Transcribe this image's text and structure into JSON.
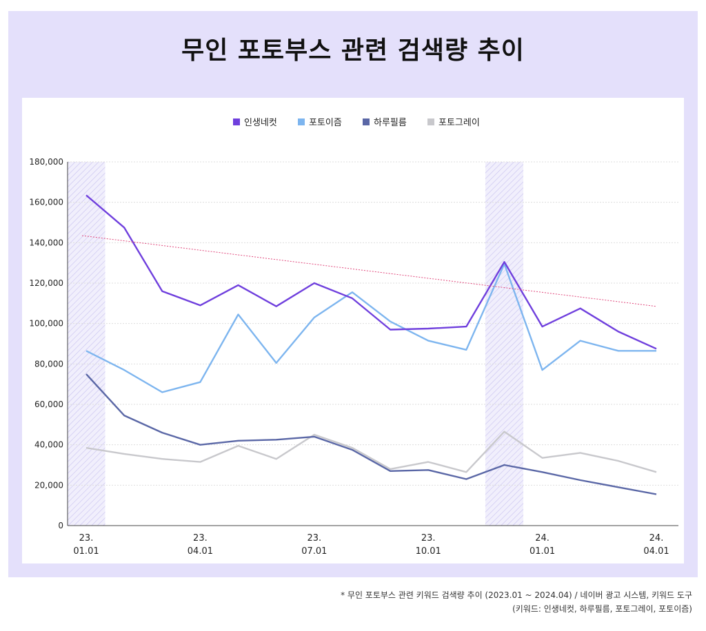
{
  "title": "무인 포토부스 관련 검색량 추이",
  "footnote": {
    "line1": "* 무인 포토부스 관련 키워드 검색량 추이 (2023.01 ~ 2024.04) / 네이버 광고 시스템, 키워드 도구",
    "line2": "(키워드: 인생네컷, 하루필름, 포토그레이, 포토이즘)"
  },
  "colors": {
    "panel_bg": "#e4e0fb",
    "trendline": "#e0457a",
    "highlight_hatch": "#c7c1ef",
    "grid": "#dddddd"
  },
  "chart_data": {
    "type": "line",
    "title": "무인 포토부스 관련 검색량 추이",
    "months": [
      "2023.01",
      "2023.02",
      "2023.03",
      "2023.04",
      "2023.05",
      "2023.06",
      "2023.07",
      "2023.08",
      "2023.09",
      "2023.10",
      "2023.11",
      "2023.12",
      "2024.01",
      "2024.02",
      "2024.03",
      "2024.04"
    ],
    "x_tick_labels": [
      {
        "index": 0,
        "line1": "23.",
        "line2": "01.01"
      },
      {
        "index": 3,
        "line1": "23.",
        "line2": "04.01"
      },
      {
        "index": 6,
        "line1": "23.",
        "line2": "07.01"
      },
      {
        "index": 9,
        "line1": "23.",
        "line2": "10.01"
      },
      {
        "index": 12,
        "line1": "24.",
        "line2": "01.01"
      },
      {
        "index": 15,
        "line1": "24.",
        "line2": "04.01"
      }
    ],
    "y_ticks": [
      "0",
      "20,000",
      "40,000",
      "60,000",
      "80,000",
      "100,000",
      "120,000",
      "140,000",
      "160,000",
      "180,000"
    ],
    "ylim": [
      0,
      180000
    ],
    "xlabel": "",
    "ylabel": "",
    "grid": true,
    "legend_position": "top-center",
    "highlight_month_ranges": [
      [
        0,
        0
      ],
      [
        11,
        11
      ]
    ],
    "trendline": {
      "series": "인생네컷",
      "start": 143500,
      "end": 108500,
      "style": "dotted"
    },
    "series": [
      {
        "name": "인생네컷",
        "color": "#6f3fdd",
        "values": [
          163500,
          147500,
          116000,
          109000,
          119000,
          108500,
          120000,
          112500,
          97000,
          97500,
          98500,
          130500,
          98500,
          107500,
          96000,
          87500
        ]
      },
      {
        "name": "포토이즘",
        "color": "#7db5ef",
        "values": [
          86500,
          77000,
          66000,
          71000,
          104500,
          80500,
          103000,
          115500,
          101000,
          91500,
          87000,
          129500,
          77000,
          91500,
          86500,
          86500
        ]
      },
      {
        "name": "하루필름",
        "color": "#5a67a6",
        "values": [
          75000,
          54500,
          46000,
          40000,
          42000,
          42500,
          44000,
          37500,
          27000,
          27500,
          23000,
          30000,
          26500,
          22500,
          19000,
          15500
        ]
      },
      {
        "name": "포토그레이",
        "color": "#c8c8cc",
        "values": [
          38500,
          35500,
          33000,
          31500,
          39500,
          33000,
          45000,
          38500,
          28000,
          31500,
          26500,
          46500,
          33500,
          36000,
          32000,
          26500
        ]
      }
    ]
  }
}
